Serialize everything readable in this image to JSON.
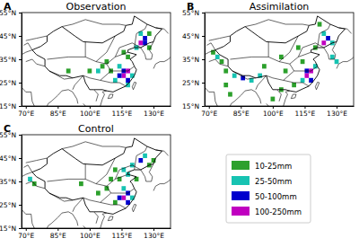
{
  "chart_data": {
    "type": "map",
    "xlim": [
      68,
      138
    ],
    "ylim": [
      15,
      55
    ],
    "xticks": [
      {
        "value": 70,
        "label": "70°E"
      },
      {
        "value": 85,
        "label": "85°E"
      },
      {
        "value": 100,
        "label": "100°E"
      },
      {
        "value": 115,
        "label": "115°E"
      },
      {
        "value": 130,
        "label": "130°E"
      }
    ],
    "yticks": [
      {
        "value": 15,
        "label": "15°N"
      },
      {
        "value": 25,
        "label": "25°N"
      },
      {
        "value": 35,
        "label": "35°N"
      },
      {
        "value": 45,
        "label": "45°N"
      },
      {
        "value": 55,
        "label": "55°N"
      }
    ],
    "levels": [
      {
        "label": "10-25mm",
        "range": [
          10,
          25
        ],
        "color": "#2ca02c"
      },
      {
        "label": "25-50mm",
        "range": [
          25,
          50
        ],
        "color": "#17c3b2"
      },
      {
        "label": "50-100mm",
        "range": [
          50,
          100
        ],
        "color": "#0000cd"
      },
      {
        "label": "100-250mm",
        "range": [
          100,
          250
        ],
        "color": "#c000c0"
      }
    ],
    "panels": [
      {
        "label": "A",
        "title": "Observation",
        "cells": [
          [
            124,
            46,
            30
          ],
          [
            126,
            44,
            60
          ],
          [
            124,
            42,
            120
          ],
          [
            126,
            42,
            70
          ],
          [
            122,
            40,
            40
          ],
          [
            128,
            46,
            20
          ],
          [
            116,
            38,
            15
          ],
          [
            118,
            36,
            20
          ],
          [
            114,
            32,
            40
          ],
          [
            116,
            30,
            80
          ],
          [
            118,
            30,
            150
          ],
          [
            116,
            28,
            120
          ],
          [
            114,
            28,
            60
          ],
          [
            118,
            26,
            70
          ],
          [
            112,
            26,
            30
          ],
          [
            110,
            30,
            20
          ],
          [
            106,
            32,
            15
          ],
          [
            104,
            30,
            30
          ],
          [
            100,
            30,
            15
          ],
          [
            90,
            30,
            15
          ],
          [
            118,
            24,
            40
          ],
          [
            120,
            28,
            30
          ],
          [
            108,
            34,
            15
          ],
          [
            128,
            40,
            15
          ]
        ]
      },
      {
        "label": "B",
        "title": "Assimilation",
        "cells": [
          [
            74,
            36,
            30
          ],
          [
            76,
            34,
            20
          ],
          [
            72,
            38,
            15
          ],
          [
            78,
            30,
            20
          ],
          [
            82,
            28,
            30
          ],
          [
            86,
            27,
            60
          ],
          [
            90,
            26,
            40
          ],
          [
            94,
            28,
            30
          ],
          [
            78,
            24,
            15
          ],
          [
            80,
            20,
            20
          ],
          [
            96,
            32,
            15
          ],
          [
            104,
            22,
            20
          ],
          [
            100,
            18,
            15
          ],
          [
            124,
            46,
            40
          ],
          [
            126,
            44,
            80
          ],
          [
            124,
            42,
            120
          ],
          [
            128,
            42,
            30
          ],
          [
            120,
            40,
            20
          ],
          [
            114,
            34,
            15
          ],
          [
            116,
            30,
            70
          ],
          [
            118,
            30,
            140
          ],
          [
            116,
            28,
            110
          ],
          [
            118,
            26,
            60
          ],
          [
            114,
            26,
            30
          ],
          [
            120,
            32,
            30
          ],
          [
            128,
            36,
            30
          ],
          [
            130,
            34,
            40
          ],
          [
            110,
            24,
            20
          ],
          [
            106,
            30,
            20
          ],
          [
            122,
            50,
            15
          ],
          [
            112,
            40,
            15
          ],
          [
            104,
            36,
            15
          ]
        ]
      },
      {
        "label": "C",
        "title": "Control",
        "cells": [
          [
            72,
            36,
            30
          ],
          [
            74,
            34,
            20
          ],
          [
            112,
            40,
            20
          ],
          [
            116,
            40,
            30
          ],
          [
            120,
            42,
            40
          ],
          [
            124,
            44,
            60
          ],
          [
            126,
            46,
            30
          ],
          [
            118,
            38,
            25
          ],
          [
            114,
            36,
            20
          ],
          [
            110,
            36,
            15
          ],
          [
            116,
            32,
            40
          ],
          [
            118,
            30,
            80
          ],
          [
            116,
            28,
            150
          ],
          [
            114,
            28,
            70
          ],
          [
            118,
            26,
            60
          ],
          [
            112,
            26,
            20
          ],
          [
            120,
            28,
            30
          ],
          [
            108,
            32,
            15
          ],
          [
            104,
            30,
            20
          ],
          [
            96,
            34,
            15
          ],
          [
            122,
            36,
            20
          ],
          [
            128,
            42,
            20
          ],
          [
            130,
            44,
            15
          ]
        ]
      }
    ]
  }
}
